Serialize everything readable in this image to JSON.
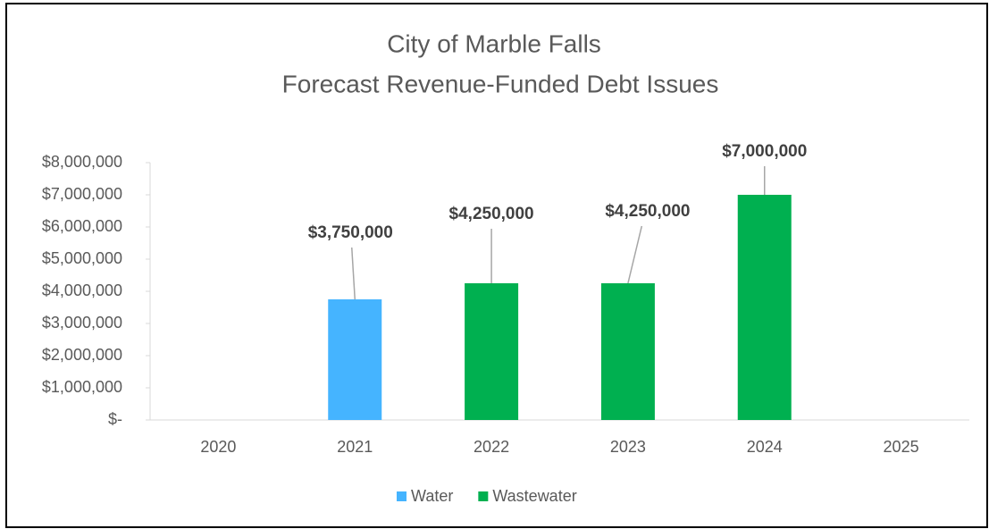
{
  "chart_data": {
    "type": "stacked_bar",
    "title": "City of Marble Falls",
    "subtitle": "Forecast Revenue-Funded  Debt Issues",
    "categories": [
      "2020",
      "2021",
      "2022",
      "2023",
      "2024",
      "2025"
    ],
    "series": [
      {
        "name": "Water",
        "color": "#45b4ff",
        "values": [
          null,
          3750000,
          null,
          null,
          null,
          null
        ],
        "value_labels": [
          null,
          "$3,750,000",
          null,
          null,
          null,
          null
        ]
      },
      {
        "name": "Wastewater",
        "color": "#00b050",
        "values": [
          null,
          null,
          4250000,
          4250000,
          7000000,
          null
        ],
        "value_labels": [
          null,
          null,
          "$4,250,000",
          "$4,250,000",
          "$7,000,000",
          null
        ]
      }
    ],
    "ylim": [
      0,
      8000000
    ],
    "yticks": [
      {
        "value": 0,
        "label": "$-"
      },
      {
        "value": 1000000,
        "label": "$1,000,000"
      },
      {
        "value": 2000000,
        "label": "$2,000,000"
      },
      {
        "value": 3000000,
        "label": "$3,000,000"
      },
      {
        "value": 4000000,
        "label": "$4,000,000"
      },
      {
        "value": 5000000,
        "label": "$5,000,000"
      },
      {
        "value": 6000000,
        "label": "$6,000,000"
      },
      {
        "value": 7000000,
        "label": "$7,000,000"
      },
      {
        "value": 8000000,
        "label": "$8,000,000"
      }
    ],
    "grid": false,
    "legend": "bottom"
  }
}
